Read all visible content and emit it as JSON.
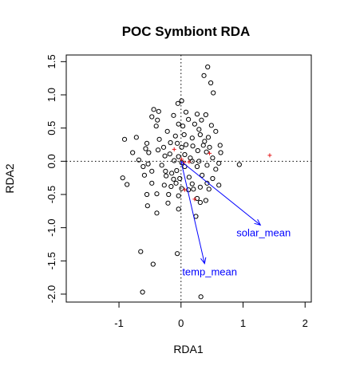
{
  "chart_data": {
    "type": "scatter",
    "title": "POC Symbiont RDA",
    "xlabel": "RDA1",
    "ylabel": "RDA2",
    "xlim": [
      -1.85,
      2.1
    ],
    "ylim": [
      -2.12,
      1.6
    ],
    "xticks": [
      -1,
      0,
      1,
      2
    ],
    "yticks": [
      -2.0,
      -1.5,
      -1.0,
      -0.5,
      0.0,
      0.5,
      1.0,
      1.5
    ],
    "ytick_labels": [
      "-2.0",
      "-1.5",
      "-1.0",
      "-0.5",
      "0.0",
      "0.5",
      "1.0",
      "1.5"
    ],
    "reference_lines": {
      "x": 0,
      "y": 0,
      "style": "dotted"
    },
    "colors": {
      "points": "#000000",
      "species": "#e41a1c",
      "arrows": "#0000ff"
    },
    "sites": [
      [
        0.43,
        1.42
      ],
      [
        0.37,
        1.29
      ],
      [
        0.48,
        1.18
      ],
      [
        0.52,
        1.03
      ],
      [
        -0.05,
        0.87
      ],
      [
        0.01,
        0.91
      ],
      [
        -0.12,
        0.69
      ],
      [
        0.08,
        0.74
      ],
      [
        -0.44,
        0.78
      ],
      [
        -0.36,
        0.75
      ],
      [
        -0.47,
        0.67
      ],
      [
        -0.38,
        0.62
      ],
      [
        -0.4,
        0.53
      ],
      [
        0.12,
        0.63
      ],
      [
        0.26,
        0.71
      ],
      [
        0.33,
        0.62
      ],
      [
        0.4,
        0.7
      ],
      [
        0.22,
        0.56
      ],
      [
        0.29,
        0.48
      ],
      [
        0.49,
        0.54
      ],
      [
        0.56,
        0.45
      ],
      [
        0.31,
        0.4
      ],
      [
        0.44,
        0.36
      ],
      [
        0.38,
        0.3
      ],
      [
        -0.04,
        0.56
      ],
      [
        0.03,
        0.53
      ],
      [
        -0.22,
        0.45
      ],
      [
        -0.09,
        0.38
      ],
      [
        0.05,
        0.4
      ],
      [
        0.18,
        0.35
      ],
      [
        -0.72,
        0.36
      ],
      [
        -0.55,
        0.27
      ],
      [
        -0.35,
        0.33
      ],
      [
        -0.17,
        0.28
      ],
      [
        -0.28,
        0.21
      ],
      [
        -0.18,
        0.11
      ],
      [
        -0.06,
        0.27
      ],
      [
        0.01,
        0.21
      ],
      [
        0.08,
        0.25
      ],
      [
        0.19,
        0.23
      ],
      [
        0.27,
        0.16
      ],
      [
        0.36,
        0.24
      ],
      [
        0.46,
        0.21
      ],
      [
        0.41,
        0.14
      ],
      [
        0.63,
        0.24
      ],
      [
        0.64,
        0.13
      ],
      [
        -0.57,
        0.19
      ],
      [
        -0.52,
        0.13
      ],
      [
        -0.91,
        0.33
      ],
      [
        -0.78,
        0.13
      ],
      [
        -0.37,
        0.17
      ],
      [
        -0.26,
        0.08
      ],
      [
        -0.11,
        0.01
      ],
      [
        -0.04,
        0.07
      ],
      [
        0.06,
        0.1
      ],
      [
        0.15,
        0.05
      ],
      [
        0.18,
        0.0
      ],
      [
        0.29,
        0.0
      ],
      [
        0.51,
        0.05
      ],
      [
        -0.68,
        0.02
      ],
      [
        -0.53,
        -0.04
      ],
      [
        -0.61,
        -0.08
      ],
      [
        -0.47,
        -0.15
      ],
      [
        -0.31,
        -0.06
      ],
      [
        -0.25,
        -0.15
      ],
      [
        -0.15,
        -0.18
      ],
      [
        -0.07,
        -0.14
      ],
      [
        0.01,
        -0.02
      ],
      [
        0.06,
        -0.08
      ],
      [
        0.26,
        -0.08
      ],
      [
        0.42,
        -0.06
      ],
      [
        0.61,
        -0.03
      ],
      [
        0.56,
        -0.12
      ],
      [
        0.94,
        -0.05
      ],
      [
        -0.94,
        -0.25
      ],
      [
        -0.87,
        -0.35
      ],
      [
        -0.59,
        -0.21
      ],
      [
        -0.47,
        -0.33
      ],
      [
        -0.24,
        -0.22
      ],
      [
        -0.12,
        -0.27
      ],
      [
        -0.02,
        -0.26
      ],
      [
        0.13,
        -0.24
      ],
      [
        0.18,
        -0.34
      ],
      [
        0.34,
        -0.21
      ],
      [
        0.42,
        -0.33
      ],
      [
        0.51,
        -0.26
      ],
      [
        0.61,
        -0.36
      ],
      [
        -0.27,
        -0.36
      ],
      [
        -0.16,
        -0.38
      ],
      [
        -0.08,
        -0.33
      ],
      [
        0.01,
        -0.41
      ],
      [
        0.12,
        -0.43
      ],
      [
        0.2,
        -0.42
      ],
      [
        0.31,
        -0.39
      ],
      [
        0.45,
        -0.42
      ],
      [
        -0.55,
        -0.5
      ],
      [
        -0.39,
        -0.49
      ],
      [
        -0.2,
        -0.5
      ],
      [
        -0.04,
        -0.52
      ],
      [
        0.26,
        -0.56
      ],
      [
        0.4,
        -0.59
      ],
      [
        -0.54,
        -0.67
      ],
      [
        -0.21,
        -0.63
      ],
      [
        0.31,
        -0.62
      ],
      [
        -0.39,
        -0.78
      ],
      [
        -0.04,
        -0.72
      ],
      [
        0.24,
        -0.83
      ],
      [
        -0.65,
        -1.36
      ],
      [
        -0.45,
        -1.55
      ],
      [
        -0.06,
        -1.39
      ],
      [
        -0.62,
        -1.97
      ],
      [
        0.32,
        -2.04
      ]
    ],
    "species": [
      [
        -0.11,
        0.18
      ],
      [
        0.01,
        0.03
      ],
      [
        0.05,
        -0.02
      ],
      [
        0.13,
        -0.01
      ],
      [
        0.46,
        0.12
      ],
      [
        1.43,
        0.09
      ],
      [
        0.06,
        -0.43
      ],
      [
        0.22,
        -0.57
      ]
    ],
    "arrows": [
      {
        "label": "solar_mean",
        "x": 1.28,
        "y": -0.96
      },
      {
        "label": "temp_mean",
        "x": 0.38,
        "y": -1.54
      }
    ]
  }
}
